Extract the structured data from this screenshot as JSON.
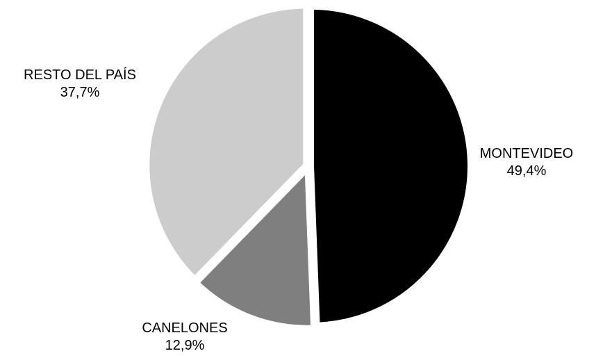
{
  "chart_data": {
    "type": "pie",
    "categories": [
      "MONTEVIDEO",
      "CANELONES",
      "RESTO DEL PAÍS"
    ],
    "values": [
      49.4,
      12.9,
      37.7
    ],
    "value_labels": [
      "49,4%",
      "12,9%",
      "37,7%"
    ],
    "colors": [
      "#000000",
      "#7f7f7f",
      "#cccccc"
    ],
    "legend": "none"
  }
}
